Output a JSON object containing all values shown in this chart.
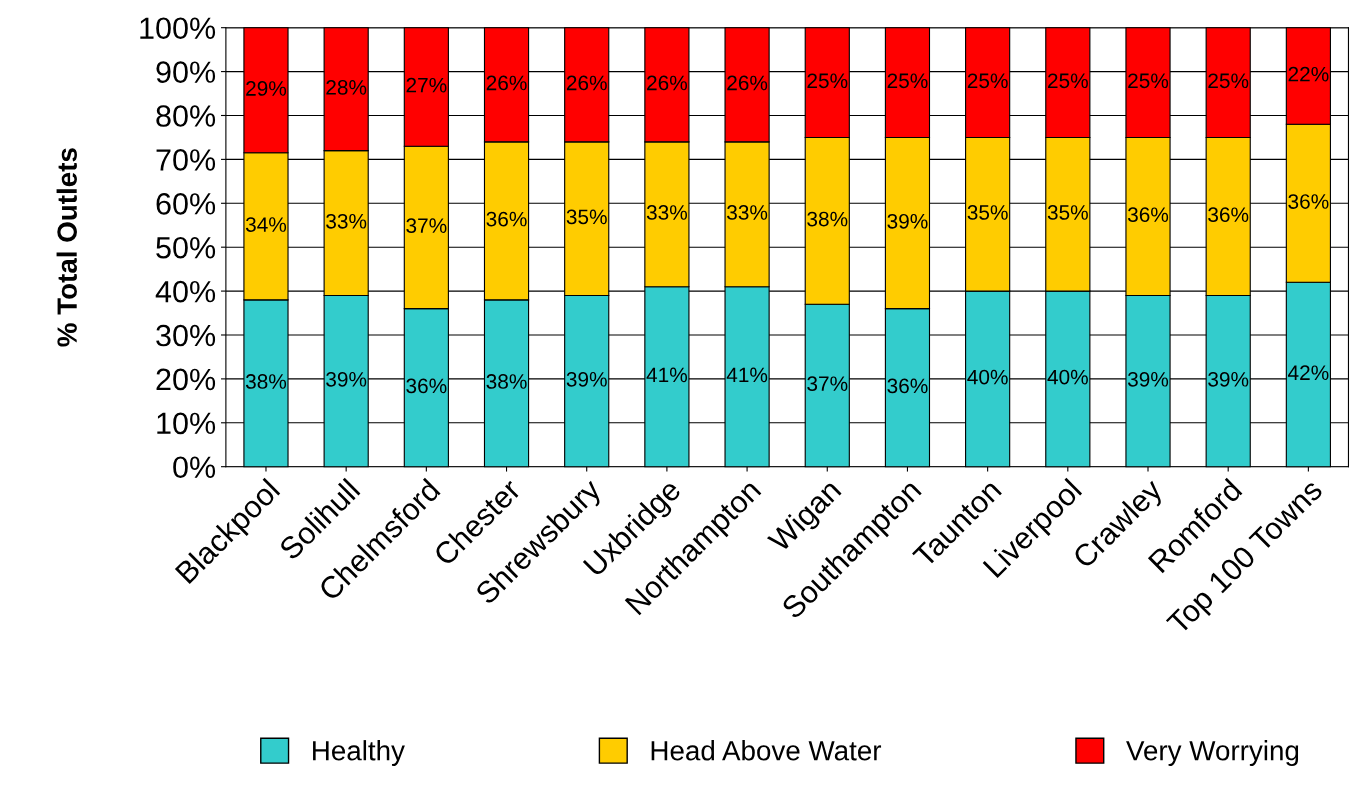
{
  "chart_data": {
    "type": "bar",
    "stacked": true,
    "ylabel": "% Total Outlets",
    "categories": [
      "Blackpool",
      "Solihull",
      "Chelmsford",
      "Chester",
      "Shrewsbury",
      "Uxbridge",
      "Northampton",
      "Wigan",
      "Southampton",
      "Taunton",
      "Liverpool",
      "Crawley",
      "Romford",
      "Top 100 Towns"
    ],
    "series": [
      {
        "name": "Healthy",
        "color": "#33cccc",
        "values": [
          38,
          39,
          36,
          38,
          39,
          41,
          41,
          37,
          36,
          40,
          40,
          39,
          39,
          42
        ],
        "value_labels": [
          "38%",
          "39%",
          "36%",
          "38%",
          "39%",
          "41%",
          "41%",
          "37%",
          "36%",
          "40%",
          "40%",
          "39%",
          "39%",
          "42%"
        ]
      },
      {
        "name": "Head Above Water",
        "color": "#ffcc00",
        "values": [
          33.5,
          33,
          37,
          36,
          35,
          33,
          33,
          38,
          39,
          35,
          35,
          36,
          36,
          36
        ],
        "value_labels": [
          "34%",
          "33%",
          "37%",
          "36%",
          "35%",
          "33%",
          "33%",
          "38%",
          "39%",
          "35%",
          "35%",
          "36%",
          "36%",
          "36%"
        ]
      },
      {
        "name": "Very Worrying",
        "color": "#ff0000",
        "values": [
          28.5,
          28,
          27,
          26,
          26,
          26,
          26,
          25,
          25,
          25,
          25,
          25,
          25,
          22
        ],
        "value_labels": [
          "29%",
          "28%",
          "27%",
          "26%",
          "26%",
          "26%",
          "26%",
          "25%",
          "25%",
          "25%",
          "25%",
          "25%",
          "25%",
          "22%"
        ]
      }
    ],
    "ylim": [
      0,
      100
    ],
    "yticks": [
      {
        "value": 0,
        "label": "0%"
      },
      {
        "value": 10,
        "label": "10%"
      },
      {
        "value": 20,
        "label": "20%"
      },
      {
        "value": 30,
        "label": "30%"
      },
      {
        "value": 40,
        "label": "40%"
      },
      {
        "value": 50,
        "label": "50%"
      },
      {
        "value": 60,
        "label": "60%"
      },
      {
        "value": 70,
        "label": "70%"
      },
      {
        "value": 80,
        "label": "80%"
      },
      {
        "value": 90,
        "label": "90%"
      },
      {
        "value": 100,
        "label": "100%"
      }
    ],
    "grid": "y",
    "legend": "bottom"
  }
}
